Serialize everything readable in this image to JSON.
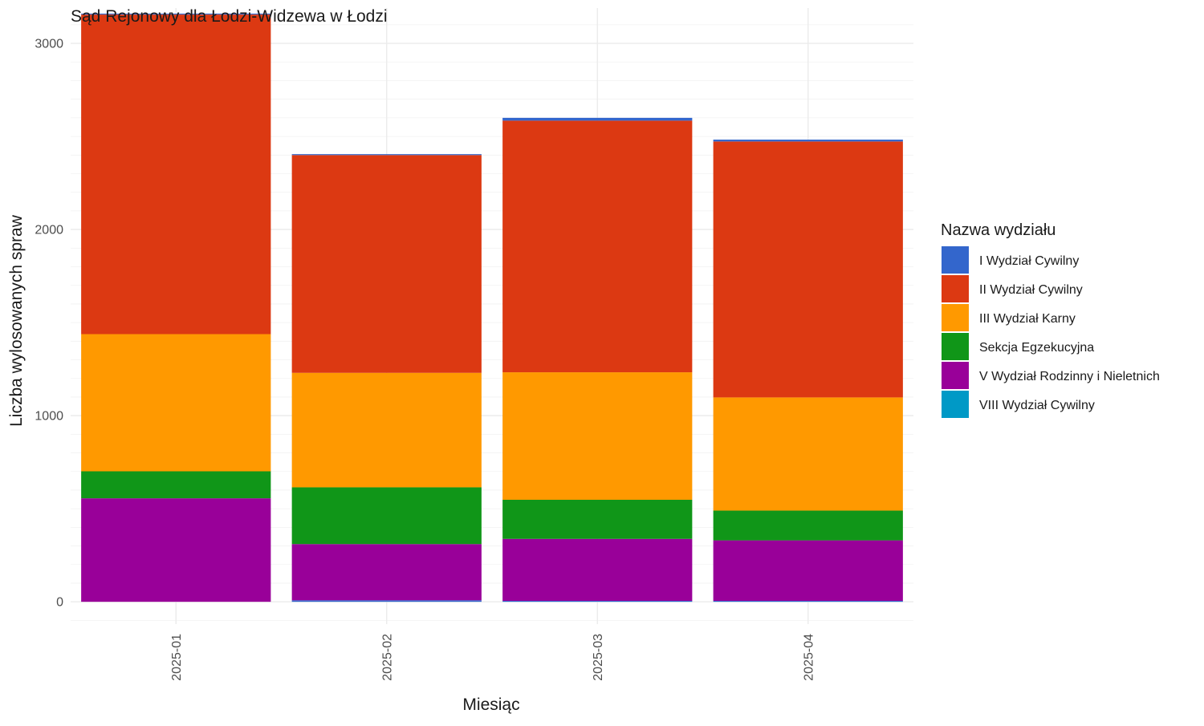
{
  "chart_data": {
    "type": "bar",
    "stacked": true,
    "title": "Sąd Rejonowy dla Łodzi-Widzewa w Łodzi",
    "xlabel": "Miesiąc",
    "ylabel": "Liczba wylosowanych spraw",
    "categories": [
      "2025-01",
      "2025-02",
      "2025-03",
      "2025-04"
    ],
    "ylim": [
      -120,
      3190
    ],
    "yticks": [
      0,
      1000,
      2000,
      3000
    ],
    "y_minor_step": 100,
    "grid": true,
    "legend": {
      "title": "Nazwa wydziału",
      "position": "right"
    },
    "series": [
      {
        "name": "VIII Wydział Cywilny",
        "color": "#0099c6",
        "values": [
          0,
          0,
          0,
          0
        ]
      },
      {
        "name": "I Wydział Cywilny",
        "color": "#3366cc",
        "values": [
          0,
          8,
          5,
          5
        ]
      },
      {
        "name": "V Wydział Rodzinny i Nieletnich",
        "color": "#990099",
        "values": [
          556,
          302,
          333,
          325
        ]
      },
      {
        "name": "Sekcja Egzekucyjna",
        "color": "#109618",
        "values": [
          145,
          305,
          210,
          160
        ]
      },
      {
        "name": "III Wydział Karny",
        "color": "#ff9900",
        "values": [
          737,
          615,
          685,
          608
        ]
      },
      {
        "name": "II Wydział Cywilny",
        "color": "#dc3912",
        "values": [
          1717,
          1170,
          1352,
          1375
        ]
      },
      {
        "name": "I Wydział Cywilny",
        "color": "#3366cc",
        "values": [
          5,
          5,
          15,
          10
        ]
      }
    ],
    "legend_items": [
      {
        "name": "I Wydział Cywilny",
        "color": "#3366cc"
      },
      {
        "name": "II Wydział Cywilny",
        "color": "#dc3912"
      },
      {
        "name": "III Wydział Karny",
        "color": "#ff9900"
      },
      {
        "name": "Sekcja Egzekucyjna",
        "color": "#109618"
      },
      {
        "name": "V Wydział Rodzinny i Nieletnich",
        "color": "#990099"
      },
      {
        "name": "VIII Wydział Cywilny",
        "color": "#0099c6"
      }
    ]
  }
}
